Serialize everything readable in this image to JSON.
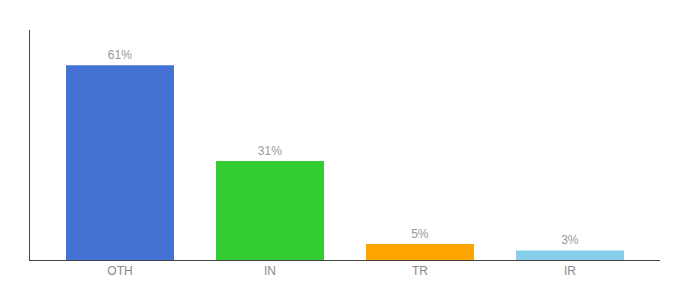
{
  "chart_data": {
    "type": "bar",
    "categories": [
      "OTH",
      "IN",
      "TR",
      "IR"
    ],
    "values": [
      61,
      31,
      5,
      3
    ],
    "value_labels": [
      "61%",
      "31%",
      "5%",
      "3%"
    ],
    "colors": [
      "#4472d4",
      "#33cc33",
      "#ffa500",
      "#87ceeb"
    ],
    "ylim": [
      0,
      72
    ],
    "yticks": [],
    "grid": false,
    "data_labels": true,
    "tick_labels": "x"
  }
}
